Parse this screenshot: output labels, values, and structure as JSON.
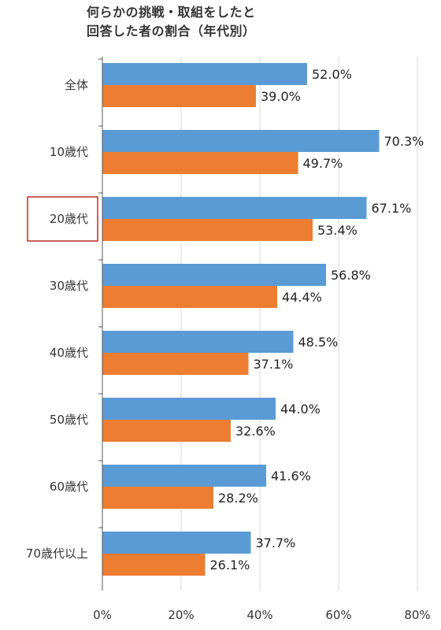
{
  "title_lines": [
    "何らかの挑戦・取組をしたと",
    "回答した者の割合（年代別）"
  ],
  "colors": {
    "series_blue": "#5b9bd5",
    "series_orange": "#ed7d31",
    "grid": "#d9d9d9",
    "axis": "#595959",
    "highlight_box": "#c0282d"
  },
  "chart_data": {
    "type": "bar",
    "orientation": "horizontal",
    "title": "何らかの挑戦・取組をしたと 回答した者の割合（年代別）",
    "categories": [
      "全体",
      "10歳代",
      "20歳代",
      "30歳代",
      "40歳代",
      "50歳代",
      "60歳代",
      "70歳代以上"
    ],
    "series": [
      {
        "values": [
          52.0,
          70.3,
          67.1,
          56.8,
          48.5,
          44.0,
          41.6,
          37.7
        ],
        "labels": [
          "52.0%",
          "70.3%",
          "67.1%",
          "56.8%",
          "48.5%",
          "44.0%",
          "41.6%",
          "37.7%"
        ]
      },
      {
        "values": [
          39.0,
          49.7,
          53.4,
          44.4,
          37.1,
          32.6,
          28.2,
          26.1
        ],
        "labels": [
          "39.0%",
          "49.7%",
          "53.4%",
          "44.4%",
          "37.1%",
          "32.6%",
          "28.2%",
          "26.1%"
        ]
      }
    ],
    "xlim": [
      0,
      80
    ],
    "x_ticks": [
      0,
      20,
      40,
      60,
      80
    ],
    "x_tick_labels": [
      "0%",
      "20%",
      "40%",
      "60%",
      "80%"
    ],
    "grid": true,
    "highlighted_category": "20歳代"
  }
}
